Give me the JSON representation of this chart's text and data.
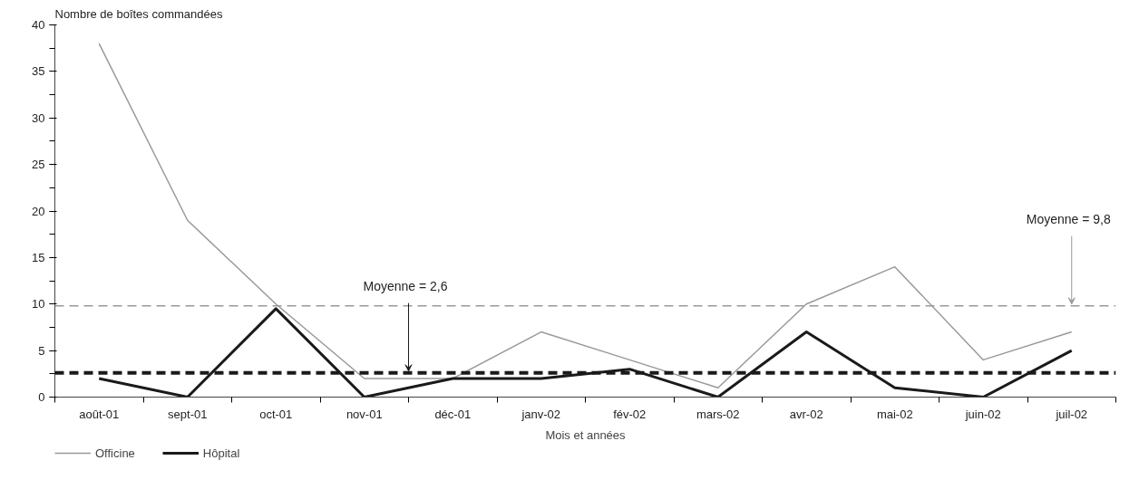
{
  "chart_data": {
    "type": "line",
    "ylabel": "Nombre de boîtes commandées",
    "xlabel": "Mois et années",
    "categories": [
      "août-01",
      "sept-01",
      "oct-01",
      "nov-01",
      "déc-01",
      "janv-02",
      "fév-02",
      "mars-02",
      "avr-02",
      "mai-02",
      "juin-02",
      "juil-02"
    ],
    "series": [
      {
        "name": "Officine",
        "color": "#999999",
        "values": [
          38,
          19,
          10,
          2,
          2,
          7,
          4,
          1,
          10,
          14,
          4,
          7
        ]
      },
      {
        "name": "Hôpital",
        "color": "#1a1a1a",
        "values": [
          2,
          0,
          9.5,
          0,
          2,
          2,
          3,
          0,
          7,
          1,
          0,
          5
        ]
      }
    ],
    "ref_lines": [
      {
        "axis": "y",
        "value": 9.8,
        "label": "Moyenne = 9,8",
        "color": "#999999",
        "line_style": "dashed"
      },
      {
        "axis": "y",
        "value": 2.6,
        "label": "Moyenne = 2,6",
        "color": "#1a1a1a",
        "line_style": "dashed"
      }
    ],
    "ylim": [
      0,
      40
    ],
    "yticks": [
      0,
      5,
      10,
      15,
      20,
      25,
      30,
      35,
      40
    ],
    "grid": false,
    "legend": "bottom left",
    "marker": "none",
    "line_style": "solid"
  }
}
